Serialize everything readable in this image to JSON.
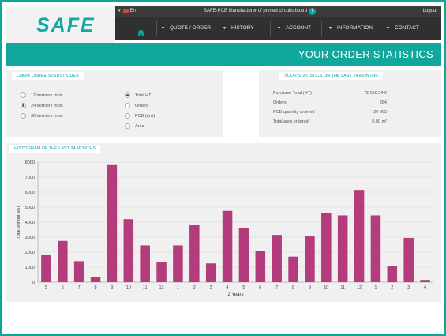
{
  "header": {
    "logo_text": "SAFE",
    "lang": "En",
    "tagline": "SAFE-PCB Manufacturer of printed circuits board",
    "logout_label": "Logout",
    "info_glyph": "i"
  },
  "nav": {
    "items": [
      {
        "label": "QUOTE / ORDER"
      },
      {
        "label": "HISTORY"
      },
      {
        "label": "ACCOUNT"
      },
      {
        "label": "INFORMATION"
      },
      {
        "label": "CONTACT"
      }
    ]
  },
  "banner": {
    "title": "YOUR ORDER STATISTICS"
  },
  "duration_panel": {
    "title": "CHOIX DUREE STATISTIQUES",
    "durations": [
      "12 derniers mois",
      "24 derniers mois",
      "36 derniers mois"
    ],
    "selected_duration": 1,
    "metrics": [
      "Total HT",
      "Orders",
      "PCB (unit)",
      "Area"
    ],
    "selected_metric": 0
  },
  "stats_panel": {
    "title": "YOUR STATISTICS ON THE LAST 24 MONTHS",
    "rows": [
      {
        "label": "Purchase Total (HT)",
        "value": "72 050.34 €"
      },
      {
        "label": "Orders",
        "value": "284"
      },
      {
        "label": "PCB quantity ordered",
        "value": "30 965"
      },
      {
        "label": "Total area ordered",
        "value": "0.00 m²"
      }
    ]
  },
  "histogram_panel": {
    "title": "HISTOGRAM OF THE LAST 24 MONTHS"
  },
  "chart_data": {
    "type": "bar",
    "title": "",
    "xlabel": "2 Years",
    "ylabel": "Total without VAT",
    "ylim": [
      0,
      8000
    ],
    "yticks": [
      0,
      1000,
      2000,
      3000,
      4000,
      5000,
      6000,
      7000,
      8000
    ],
    "categories": [
      "5",
      "6",
      "7",
      "8",
      "9",
      "10",
      "11",
      "12",
      "1",
      "2",
      "3",
      "4",
      "5",
      "6",
      "7",
      "8",
      "9",
      "10",
      "11",
      "12",
      "1",
      "2",
      "3",
      "4"
    ],
    "values": [
      1800,
      2750,
      1400,
      350,
      7800,
      4200,
      2450,
      1350,
      2450,
      3800,
      1250,
      4750,
      3600,
      2100,
      3150,
      1700,
      3050,
      4600,
      4450,
      6150,
      4450,
      1100,
      2950,
      150
    ],
    "grid": true,
    "bar_color": "#b43c7c"
  }
}
